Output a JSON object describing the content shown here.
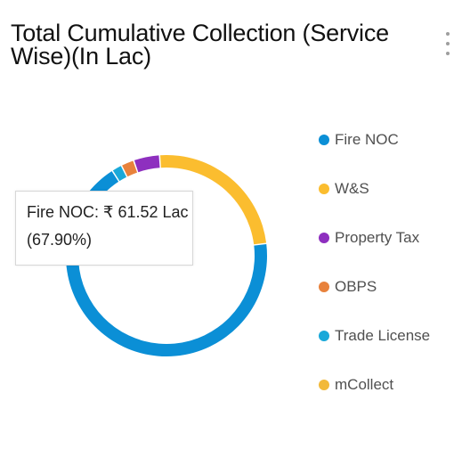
{
  "card": {
    "title": "Total Cumulative Collection (Service Wise)(In Lac)",
    "menu_icon": "more-vertical-icon"
  },
  "tooltip": {
    "line1": "Fire NOC: ₹ 61.52 Lac",
    "line2": "(67.90%)"
  },
  "chart_data": {
    "type": "pie",
    "title": "Total Cumulative Collection (Service Wise)(In Lac)",
    "donut": true,
    "unit": "Lac",
    "legend_position": "right",
    "series": [
      {
        "name": "Fire NOC",
        "value": 61.52,
        "percent": 67.9,
        "color": "#0b8fd6"
      },
      {
        "name": "Trade License",
        "value": 1.5,
        "percent": 1.66,
        "color": "#19a8d9"
      },
      {
        "name": "OBPS",
        "value": 1.9,
        "percent": 2.1,
        "color": "#e8823c"
      },
      {
        "name": "Property Tax",
        "value": 3.8,
        "percent": 4.19,
        "color": "#8e2fbf"
      },
      {
        "name": "W&S",
        "value": 21.88,
        "percent": 24.15,
        "color": "#fbbd2f"
      },
      {
        "name": "mCollect",
        "value": 0.0,
        "percent": 0.0,
        "color": "#f2b93a"
      }
    ]
  },
  "legend": {
    "items": [
      {
        "label": "Fire NOC",
        "color": "#0b8fd6"
      },
      {
        "label": "W&S",
        "color": "#fbbd2f"
      },
      {
        "label": "Property Tax",
        "color": "#8e2fbf"
      },
      {
        "label": "OBPS",
        "color": "#e8823c"
      },
      {
        "label": "Trade License",
        "color": "#19a8d9"
      },
      {
        "label": "mCollect",
        "color": "#f2b93a"
      }
    ]
  }
}
